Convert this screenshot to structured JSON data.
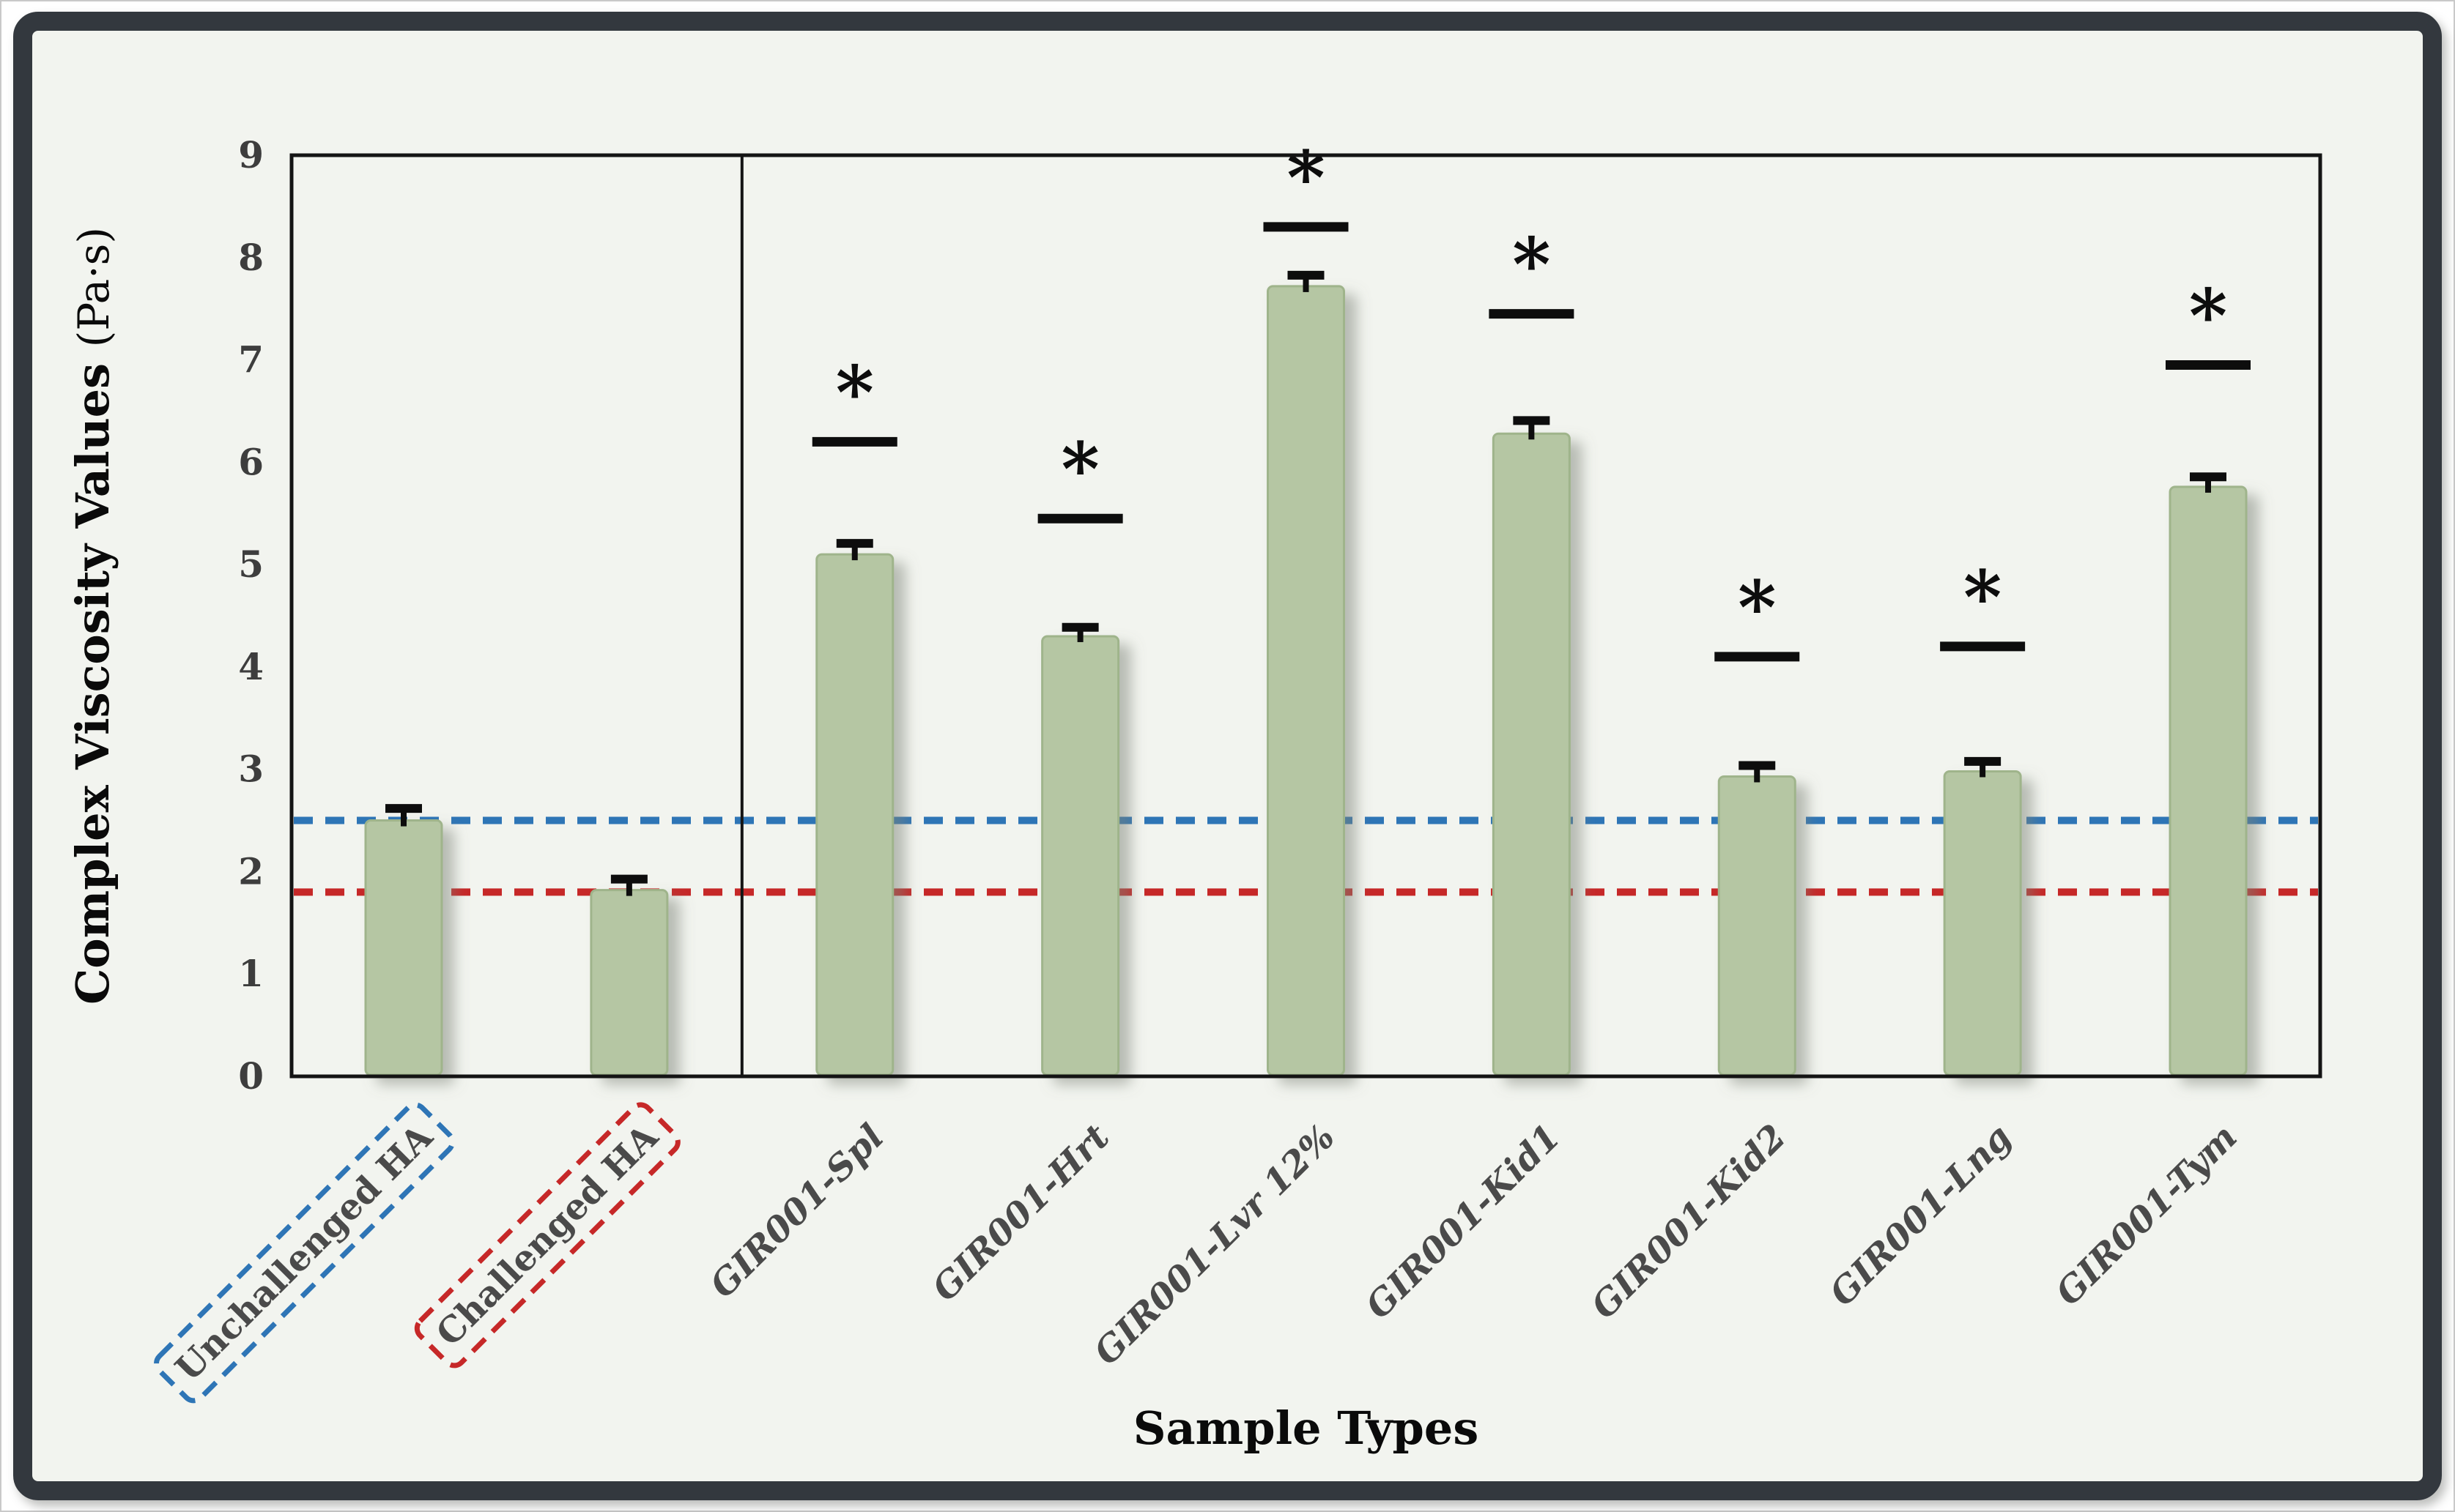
{
  "figure": {
    "outer_background": "#ffffff",
    "frame_border_color": "#33383e",
    "inner_background": "#f2f4ef",
    "axis_color": "#141414",
    "tick_label_color": "#3d3d3d",
    "category_label_color": "#4a4a4a",
    "significance_color": "#0d0d0d"
  },
  "chart_data": {
    "type": "bar",
    "title": "",
    "xlabel": "Sample Types",
    "ylabel": "Complex Viscosity Values (Pa·s)",
    "ylabel_bold_part": "Complex Viscosity Values ",
    "ylabel_unit_part": "(Pa·s)",
    "ylim": [
      0,
      9
    ],
    "yticks": [
      0,
      1,
      2,
      3,
      4,
      5,
      6,
      7,
      8,
      9
    ],
    "grid": false,
    "legend": "none",
    "categories": [
      "Unchallenged HA",
      "Challenged HA",
      "GIR001-Spl",
      "GIR001-Hrt",
      "GIR001-Lvr 12%",
      "GIR001-Kid1",
      "GIR001-Kid2",
      "GIR001-Lng",
      "GIR001-Tym"
    ],
    "values": [
      2.5,
      1.82,
      5.1,
      4.3,
      7.72,
      6.28,
      2.93,
      2.98,
      5.76
    ],
    "errors": [
      0.06,
      0.05,
      0.05,
      0.03,
      0.05,
      0.07,
      0.05,
      0.04,
      0.04
    ],
    "significance_lines": [
      null,
      null,
      6.2,
      5.45,
      8.3,
      7.45,
      4.1,
      4.2,
      6.95
    ],
    "significance_marker": "*",
    "bar_color": "#b5c6a3",
    "bar_border_color": "#9fb48b",
    "bar_shadow_color": "#7d8278",
    "group_divider_after_index": 1,
    "reference_lines": [
      {
        "name": "unchallenged-ha-baseline",
        "value": 2.5,
        "color": "#2e75b6",
        "style": "dashed"
      },
      {
        "name": "challenged-ha-baseline",
        "value": 1.8,
        "color": "#c62828",
        "style": "dashed"
      }
    ],
    "category_styles": [
      {
        "italic": false,
        "box_color": "#2e75b6"
      },
      {
        "italic": false,
        "box_color": "#c62828"
      },
      {
        "italic": true,
        "box_color": null
      },
      {
        "italic": true,
        "box_color": null
      },
      {
        "italic": true,
        "box_color": null
      },
      {
        "italic": true,
        "box_color": null
      },
      {
        "italic": true,
        "box_color": null
      },
      {
        "italic": true,
        "box_color": null
      },
      {
        "italic": true,
        "box_color": null
      }
    ],
    "label_rotation_deg": -45
  }
}
